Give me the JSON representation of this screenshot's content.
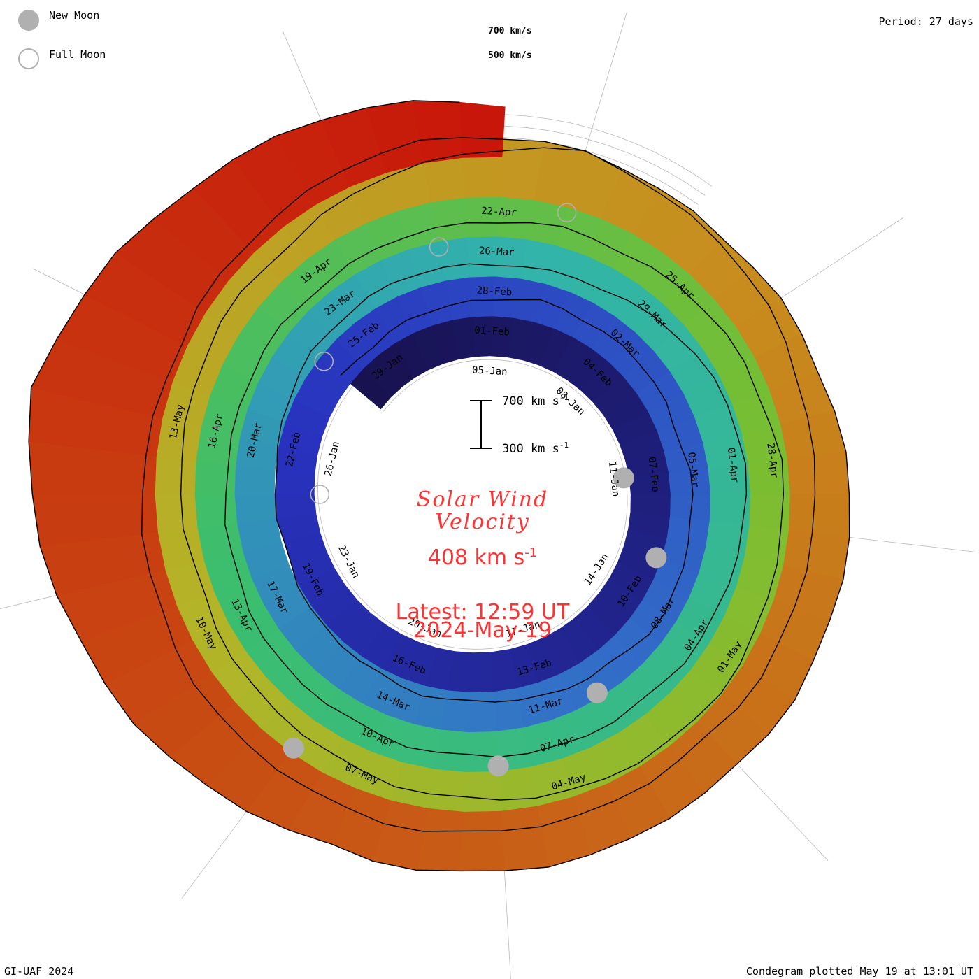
{
  "legend": {
    "new_moon_label": "New Moon",
    "full_moon_label": "Full Moon"
  },
  "period_label": "Period: 27 days",
  "scale_labels": {
    "upper": "700 km/s",
    "lower": "500 km/s"
  },
  "scale_bar": {
    "top_label": "700 km s",
    "bottom_label": "300 km s",
    "unit_exponent": "-1"
  },
  "title": {
    "line1": "Solar Wind",
    "line2": "Velocity"
  },
  "current_value": {
    "text": "408 km s",
    "exponent": "-1"
  },
  "latest": {
    "time": "Latest: 12:59 UT",
    "date": "2024-May-19"
  },
  "footer": {
    "left": "GI-UAF 2024",
    "right": "Condegram plotted May 19 at 13:01 UT"
  },
  "colors": {
    "new_moon": "#b0b0b0",
    "full_moon": "#b0b0b0",
    "title_red": "#ff3333",
    "grid": "#bbbbbb"
  },
  "chart_data": {
    "type": "area",
    "form": "spiral condegram (polar, one turn per solar rotation)",
    "title": "Solar Wind Velocity",
    "units": "km s-1",
    "period_days": 27,
    "plot_start": "2024-01-01",
    "plot_end": "2024-05-19",
    "scale_range": [
      300,
      700
    ],
    "current_speed": 408,
    "date_labels": [
      "05-Jan",
      "08-Jan",
      "11-Jan",
      "14-Jan",
      "17-Jan",
      "20-Jan",
      "23-Jan",
      "26-Jan",
      "29-Jan",
      "01-Feb",
      "04-Feb",
      "07-Feb",
      "10-Feb",
      "13-Feb",
      "16-Feb",
      "19-Feb",
      "22-Feb",
      "25-Feb",
      "28-Feb",
      "02-Mar",
      "05-Mar",
      "08-Mar",
      "11-Mar",
      "14-Mar",
      "17-Mar",
      "20-Mar",
      "23-Mar",
      "26-Mar",
      "29-Mar",
      "01-Apr",
      "04-Apr",
      "07-Apr",
      "10-Apr",
      "13-Apr",
      "16-Apr",
      "19-Apr",
      "22-Apr",
      "25-Apr",
      "28-Apr",
      "01-May",
      "04-May",
      "07-May",
      "10-May",
      "13-May"
    ],
    "series": [
      {
        "values": [
          {
            "date": "2024-01-01",
            "speed": 390
          },
          {
            "date": "2024-01-06",
            "speed": 440
          },
          {
            "date": "2024-01-10",
            "speed": 420
          },
          {
            "date": "2024-01-14",
            "speed": 470
          },
          {
            "date": "2024-01-18",
            "speed": 380
          },
          {
            "date": "2024-01-22",
            "speed": 350
          },
          {
            "date": "2024-01-25",
            "speed": 340
          },
          {
            "date": "2024-01-29",
            "speed": 390
          },
          {
            "date": "2024-02-02",
            "speed": 400
          },
          {
            "date": "2024-02-06",
            "speed": 520
          },
          {
            "date": "2024-02-10",
            "speed": 470
          },
          {
            "date": "2024-02-14",
            "speed": 470
          },
          {
            "date": "2024-02-18",
            "speed": 420
          },
          {
            "date": "2024-02-21",
            "speed": 370
          },
          {
            "date": "2024-02-25",
            "speed": 400
          },
          {
            "date": "2024-03-01",
            "speed": 420
          },
          {
            "date": "2024-03-05",
            "speed": 500
          },
          {
            "date": "2024-03-09",
            "speed": 520
          },
          {
            "date": "2024-03-13",
            "speed": 450
          },
          {
            "date": "2024-03-18",
            "speed": 400
          },
          {
            "date": "2024-03-23",
            "speed": 440
          },
          {
            "date": "2024-03-27",
            "speed": 620
          },
          {
            "date": "2024-04-01",
            "speed": 450
          },
          {
            "date": "2024-04-05",
            "speed": 430
          },
          {
            "date": "2024-04-09",
            "speed": 450
          },
          {
            "date": "2024-04-13",
            "speed": 420
          },
          {
            "date": "2024-04-17",
            "speed": 380
          },
          {
            "date": "2024-04-21",
            "speed": 440
          },
          {
            "date": "2024-04-25",
            "speed": 380
          },
          {
            "date": "2024-04-29",
            "speed": 450
          },
          {
            "date": "2024-05-03",
            "speed": 420
          },
          {
            "date": "2024-05-07",
            "speed": 450
          },
          {
            "date": "2024-05-11",
            "speed": 680
          },
          {
            "date": "2024-05-13",
            "speed": 780
          },
          {
            "date": "2024-05-15",
            "speed": 600
          },
          {
            "date": "2024-05-17",
            "speed": 500
          },
          {
            "date": "2024-05-19",
            "speed": 408
          }
        ]
      }
    ],
    "new_moons": [
      "2024-01-11",
      "2024-02-09",
      "2024-03-10",
      "2024-04-08",
      "2024-05-08"
    ],
    "full_moons": [
      "2024-01-25",
      "2024-02-24",
      "2024-03-25",
      "2024-04-23"
    ]
  }
}
